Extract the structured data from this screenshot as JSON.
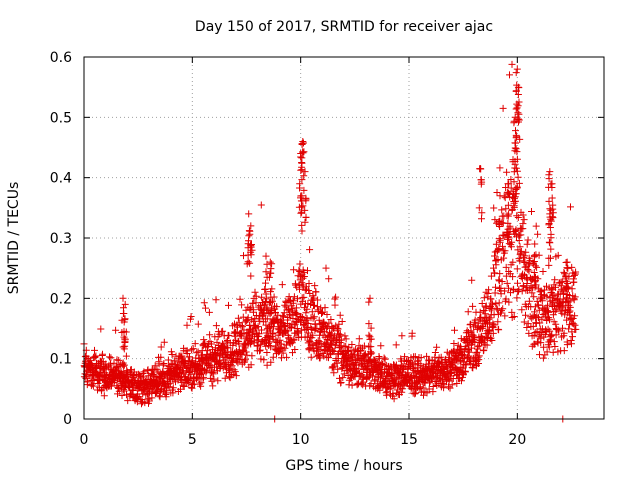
{
  "chart_data": {
    "type": "scatter",
    "title": "Day 150 of 2017, SRMTID for receiver ajac",
    "xlabel": "GPS time / hours",
    "ylabel": "SRMTID / TECUs",
    "xlim": [
      0,
      24
    ],
    "ylim": [
      0,
      0.6
    ],
    "xticks": [
      0,
      5,
      10,
      15,
      20
    ],
    "xtick_labels": [
      "0",
      "5",
      "10",
      "15",
      "20"
    ],
    "yticks": [
      0,
      0.1,
      0.2,
      0.3,
      0.4,
      0.5,
      0.6
    ],
    "ytick_labels": [
      "0",
      "0.1",
      "0.2",
      "0.3",
      "0.4",
      "0.5",
      "0.6"
    ],
    "grid": true,
    "marker": "+",
    "color": "#e00000",
    "trend": [
      [
        0.0,
        0.09
      ],
      [
        0.5,
        0.08
      ],
      [
        1.0,
        0.07
      ],
      [
        1.5,
        0.075
      ],
      [
        2.0,
        0.06
      ],
      [
        2.5,
        0.05
      ],
      [
        3.0,
        0.055
      ],
      [
        3.5,
        0.065
      ],
      [
        4.0,
        0.07
      ],
      [
        4.5,
        0.08
      ],
      [
        5.0,
        0.085
      ],
      [
        5.5,
        0.095
      ],
      [
        6.0,
        0.1
      ],
      [
        6.5,
        0.11
      ],
      [
        7.0,
        0.115
      ],
      [
        7.5,
        0.14
      ],
      [
        8.0,
        0.16
      ],
      [
        8.5,
        0.15
      ],
      [
        9.0,
        0.14
      ],
      [
        9.5,
        0.15
      ],
      [
        10.0,
        0.19
      ],
      [
        10.5,
        0.17
      ],
      [
        11.0,
        0.14
      ],
      [
        11.5,
        0.12
      ],
      [
        12.0,
        0.1
      ],
      [
        12.5,
        0.09
      ],
      [
        13.0,
        0.085
      ],
      [
        13.5,
        0.08
      ],
      [
        14.0,
        0.065
      ],
      [
        14.5,
        0.07
      ],
      [
        15.0,
        0.075
      ],
      [
        15.5,
        0.07
      ],
      [
        16.0,
        0.075
      ],
      [
        16.5,
        0.08
      ],
      [
        17.0,
        0.09
      ],
      [
        17.5,
        0.1
      ],
      [
        18.0,
        0.12
      ],
      [
        18.5,
        0.15
      ],
      [
        19.0,
        0.22
      ],
      [
        19.5,
        0.29
      ],
      [
        20.0,
        0.3
      ],
      [
        20.5,
        0.22
      ],
      [
        21.0,
        0.17
      ],
      [
        21.5,
        0.17
      ],
      [
        22.0,
        0.18
      ],
      [
        22.5,
        0.2
      ],
      [
        22.7,
        0.2
      ]
    ],
    "spikes": [
      [
        1.8,
        0.2
      ],
      [
        1.9,
        0.19
      ],
      [
        7.6,
        0.34
      ],
      [
        7.7,
        0.32
      ],
      [
        8.4,
        0.27
      ],
      [
        8.6,
        0.26
      ],
      [
        10.0,
        0.44
      ],
      [
        10.1,
        0.46
      ],
      [
        10.2,
        0.41
      ],
      [
        10.05,
        0.37
      ],
      [
        13.2,
        0.2
      ],
      [
        18.3,
        0.415
      ],
      [
        19.2,
        0.37
      ],
      [
        19.6,
        0.39
      ],
      [
        19.8,
        0.43
      ],
      [
        19.9,
        0.5
      ],
      [
        20.0,
        0.58
      ],
      [
        20.05,
        0.55
      ],
      [
        19.95,
        0.47
      ],
      [
        21.5,
        0.41
      ],
      [
        21.6,
        0.39
      ],
      [
        21.5,
        0.34
      ],
      [
        20.8,
        0.29
      ],
      [
        22.3,
        0.26
      ]
    ],
    "outliers": [
      [
        8.8,
        0.0
      ],
      [
        22.1,
        0.0
      ]
    ]
  }
}
